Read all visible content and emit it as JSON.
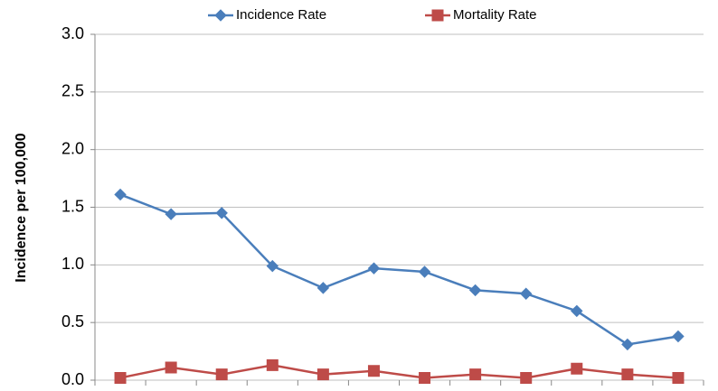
{
  "chart_data": {
    "type": "line",
    "y_label": "Incidence per 100,000",
    "categories": [
      null,
      null,
      null,
      null,
      null,
      null,
      null,
      null,
      null,
      null,
      null,
      null
    ],
    "series": [
      {
        "name": "Incidence Rate",
        "color": "#4a7ebb",
        "marker": "diamond",
        "values": [
          1.61,
          1.44,
          1.45,
          0.99,
          0.8,
          0.97,
          0.94,
          0.78,
          0.75,
          0.6,
          0.31,
          0.38
        ]
      },
      {
        "name": "Mortality Rate",
        "color": "#be4b48",
        "marker": "square",
        "values": [
          0.02,
          0.11,
          0.05,
          0.13,
          0.05,
          0.08,
          0.02,
          0.05,
          0.02,
          0.1,
          0.05,
          0.02
        ]
      }
    ],
    "ylim": [
      0,
      3
    ],
    "yticks": [
      {
        "value": 0,
        "label": "0.0"
      },
      {
        "value": 0.5,
        "label": "0.5"
      },
      {
        "value": 1,
        "label": "1.0"
      },
      {
        "value": 1.5,
        "label": "1.5"
      },
      {
        "value": 2,
        "label": "2.0"
      },
      {
        "value": 2.5,
        "label": "2.5"
      },
      {
        "value": 3,
        "label": "3.0"
      }
    ],
    "grid": true,
    "legend": "top"
  }
}
